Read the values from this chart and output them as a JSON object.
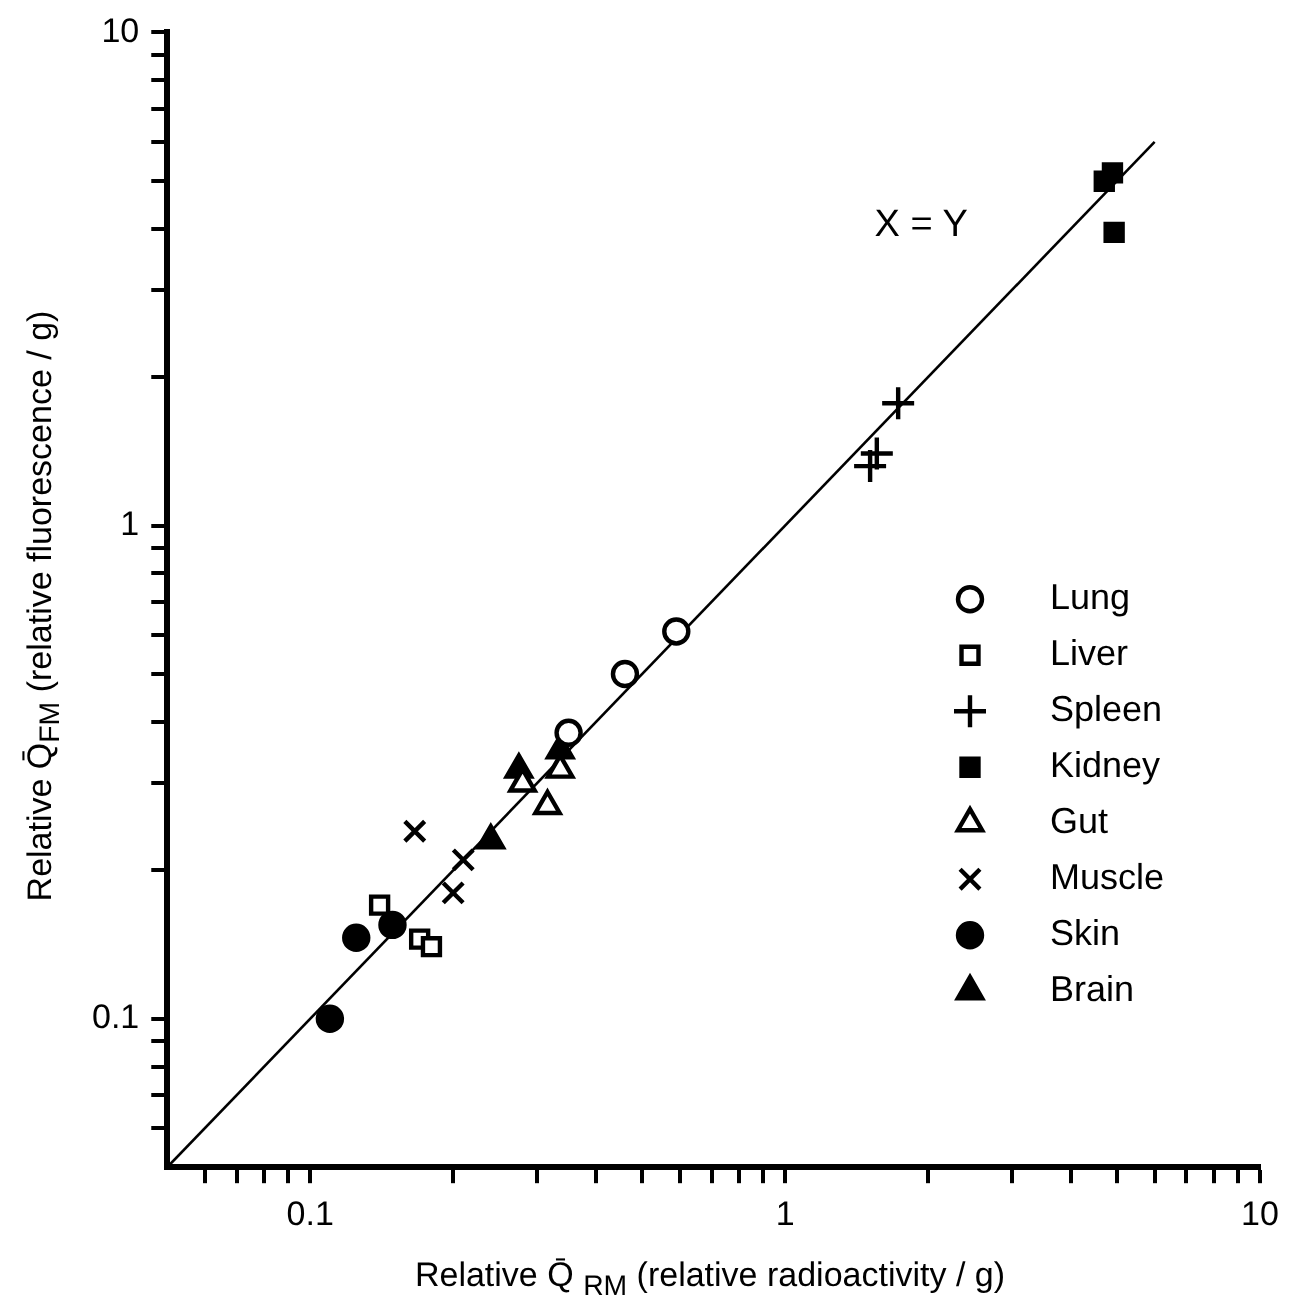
{
  "chart_data": {
    "type": "scatter",
    "xlabel": "Relative Q̄ $_{RM}$ (relative radioactivity / g)",
    "ylabel": "Relative Q̄$_{FM}$ (relative fluorescence / g)",
    "log": "xy",
    "grid": false,
    "legend": "right",
    "xlim": [
      0.05,
      10
    ],
    "ylim": [
      0.05,
      10
    ],
    "xticks": [
      {
        "value": 0.06,
        "label": null
      },
      {
        "value": 0.07,
        "label": null
      },
      {
        "value": 0.08,
        "label": null
      },
      {
        "value": 0.09,
        "label": null
      },
      {
        "value": 0.1,
        "label": "0.1"
      },
      {
        "value": 0.2,
        "label": null
      },
      {
        "value": 0.3,
        "label": null
      },
      {
        "value": 0.4,
        "label": null
      },
      {
        "value": 0.5,
        "label": null
      },
      {
        "value": 0.6,
        "label": null
      },
      {
        "value": 0.7,
        "label": null
      },
      {
        "value": 0.8,
        "label": null
      },
      {
        "value": 0.9,
        "label": null
      },
      1,
      {
        "value": 2,
        "label": null
      },
      {
        "value": 3,
        "label": null
      },
      {
        "value": 4,
        "label": null
      },
      {
        "value": 5,
        "label": null
      },
      {
        "value": 6,
        "label": null
      },
      {
        "value": 7,
        "label": null
      },
      {
        "value": 8,
        "label": null
      },
      {
        "value": 9,
        "label": null
      },
      10
    ],
    "yticks": [
      {
        "value": 0.06,
        "label": null
      },
      {
        "value": 0.07,
        "label": null
      },
      {
        "value": 0.08,
        "label": null
      },
      {
        "value": 0.09,
        "label": null
      },
      {
        "value": 0.1,
        "label": "0.1"
      },
      {
        "value": 0.2,
        "label": null
      },
      {
        "value": 0.3,
        "label": null
      },
      {
        "value": 0.4,
        "label": null
      },
      {
        "value": 0.5,
        "label": null
      },
      {
        "value": 0.6,
        "label": null
      },
      {
        "value": 0.7,
        "label": null
      },
      {
        "value": 0.8,
        "label": null
      },
      {
        "value": 0.9,
        "label": null
      },
      1,
      {
        "value": 2,
        "label": null
      },
      {
        "value": 3,
        "label": null
      },
      {
        "value": 4,
        "label": null
      },
      {
        "value": 5,
        "label": null
      },
      {
        "value": 6,
        "label": null
      },
      {
        "value": 7,
        "label": null
      },
      {
        "value": 8,
        "label": null
      },
      {
        "value": 9,
        "label": null
      },
      10
    ],
    "annotations": [
      "X = Y"
    ],
    "series": [
      {
        "name": "Lung",
        "color": "#000000",
        "marker": "circle-open",
        "x": [
          0.46,
          0.59,
          0.35
        ],
        "values": [
          0.5,
          0.61,
          0.38
        ]
      },
      {
        "name": "Liver",
        "color": "#000000",
        "marker": "square-open",
        "x": [
          0.14,
          0.17,
          0.18
        ],
        "values": [
          0.17,
          0.145,
          0.14
        ]
      },
      {
        "name": "Spleen",
        "color": "#000000",
        "marker": "cross",
        "x": [
          1.73,
          1.56,
          1.51
        ],
        "values": [
          1.77,
          1.4,
          1.32
        ]
      },
      {
        "name": "Kidney",
        "color": "#000000",
        "marker": "square",
        "x": [
          4.7,
          4.89,
          4.93
        ],
        "values": [
          4.99,
          5.19,
          3.93
        ]
      },
      {
        "name": "Gut",
        "color": "#000000",
        "marker": "triangle-open",
        "x": [
          0.28,
          0.316,
          0.336
        ],
        "values": [
          0.3,
          0.27,
          0.32
        ]
      },
      {
        "name": "Muscle",
        "color": "#000000",
        "marker": "x",
        "x": [
          0.166,
          0.21,
          0.2
        ],
        "values": [
          0.24,
          0.21,
          0.18
        ]
      },
      {
        "name": "Skin",
        "color": "#000000",
        "marker": "circle",
        "x": [
          0.11,
          0.125,
          0.149
        ],
        "values": [
          0.1,
          0.146,
          0.155
        ]
      },
      {
        "name": "Brain",
        "color": "#000000",
        "marker": "triangle",
        "x": [
          0.275,
          0.24,
          0.336
        ],
        "values": [
          0.32,
          0.23,
          0.35
        ]
      },
      {
        "type": "line",
        "color": "#000000",
        "marker": "none",
        "x": [
          0.05,
          6
        ],
        "values": [
          0.05,
          6
        ]
      }
    ]
  }
}
